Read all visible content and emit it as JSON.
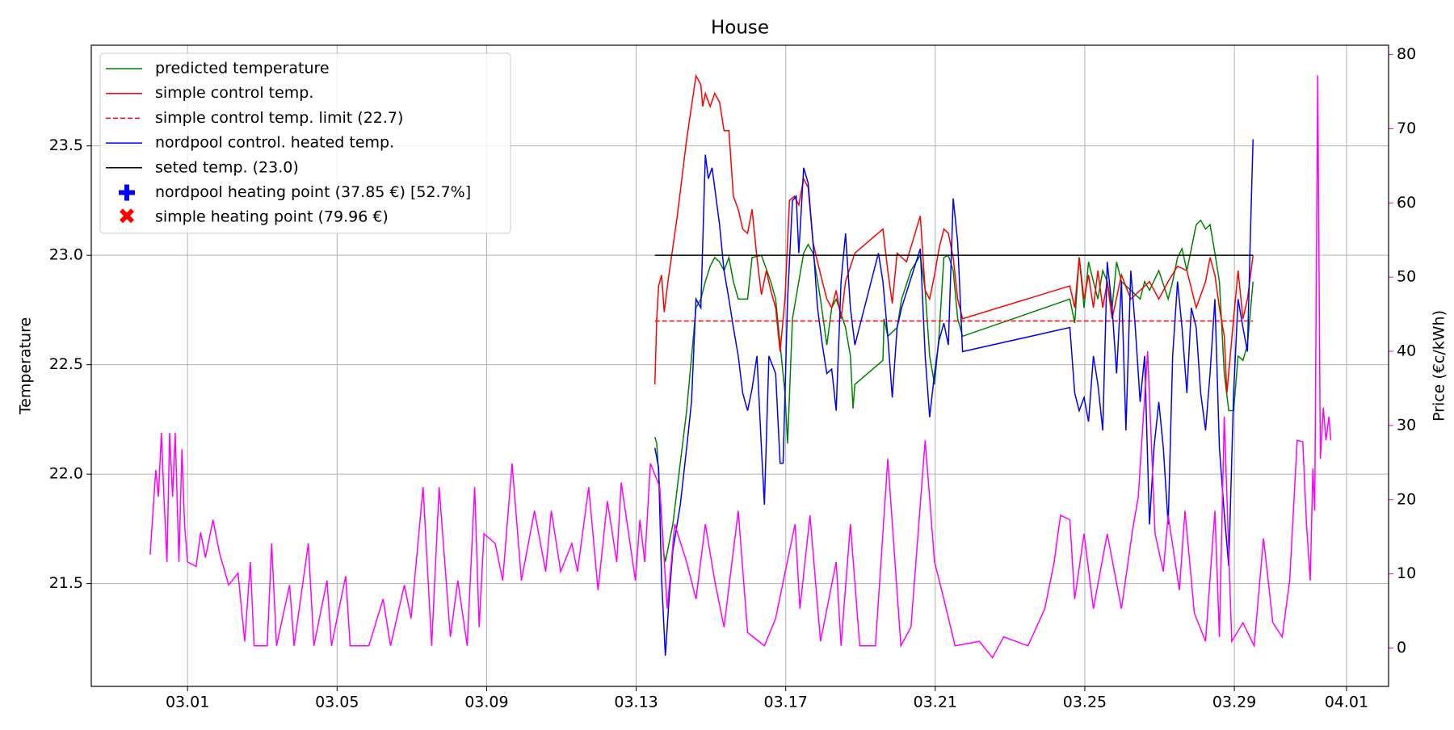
{
  "chart_data": {
    "type": "line",
    "title": "House",
    "ylabel": "Temperature",
    "y2label": "Price (€c/kWh)",
    "y2color": "#ff00ff",
    "grid": true,
    "legend": "upper left",
    "xlim": [
      -2.575,
      32.125
    ],
    "xticks": [
      {
        "value": 0,
        "label": "03.01"
      },
      {
        "value": 4,
        "label": "03.05"
      },
      {
        "value": 8,
        "label": "03.09"
      },
      {
        "value": 12,
        "label": "03.13"
      },
      {
        "value": 16,
        "label": "03.17"
      },
      {
        "value": 20,
        "label": "03.21"
      },
      {
        "value": 24,
        "label": "03.25"
      },
      {
        "value": 28,
        "label": "03.29"
      },
      {
        "value": 31,
        "label": "04.01"
      }
    ],
    "ylim": [
      21.03,
      23.96
    ],
    "yticks": [
      21.5,
      {
        "value": 22,
        "label": "22.0"
      },
      22.5,
      {
        "value": 23,
        "label": "23.0"
      },
      23.5
    ],
    "y2lim": [
      -5.17,
      81.26
    ],
    "y2ticks": [
      0,
      10,
      20,
      30,
      40,
      50,
      60,
      70,
      80
    ],
    "series": [
      {
        "name": "predicted temperature",
        "color": "#008000",
        "style": "solid",
        "x": [
          12.5,
          12.55,
          12.73,
          12.78,
          12.98,
          13.35,
          13.6,
          13.73,
          13.85,
          13.98,
          14.1,
          14.23,
          14.35,
          14.48,
          14.6,
          14.73,
          14.98,
          15.1,
          15.35,
          15.6,
          15.73,
          15.98,
          16.05,
          16.18,
          16.35,
          16.48,
          16.6,
          16.73,
          16.93,
          17.1,
          17.23,
          17.35,
          17.6,
          17.73,
          17.8,
          17.85,
          18.6,
          18.63,
          18.73,
          18.98,
          19.1,
          19.35,
          19.6,
          19.73,
          19.85,
          19.98,
          20.1,
          20.23,
          20.35,
          20.48,
          20.6,
          20.73,
          23.6,
          23.73,
          23.85,
          23.98,
          24.1,
          24.23,
          24.35,
          24.48,
          24.6,
          24.73,
          24.85,
          24.98,
          25.23,
          25.48,
          25.6,
          25.73,
          25.98,
          26.23,
          26.35,
          26.48,
          26.6,
          26.73,
          26.98,
          27.1,
          27.23,
          27.35,
          27.48,
          27.6,
          27.73,
          27.85,
          27.98,
          28.1,
          28.23,
          28.35,
          28.5
        ],
        "values": [
          22.17,
          22.14,
          21.65,
          21.6,
          21.77,
          22.29,
          22.76,
          22.8,
          22.88,
          22.95,
          22.99,
          22.97,
          22.93,
          22.99,
          22.88,
          22.8,
          22.8,
          22.99,
          23.0,
          22.88,
          22.8,
          22.37,
          22.14,
          22.71,
          22.88,
          23.01,
          23.05,
          23.01,
          22.8,
          22.59,
          22.76,
          22.8,
          22.67,
          22.54,
          22.3,
          22.41,
          22.52,
          22.71,
          22.63,
          22.67,
          22.8,
          22.93,
          23.0,
          22.84,
          22.54,
          22.41,
          22.63,
          22.99,
          23.0,
          22.93,
          22.71,
          22.63,
          22.8,
          22.69,
          22.99,
          22.76,
          22.97,
          22.88,
          22.8,
          22.93,
          22.88,
          22.76,
          22.97,
          22.88,
          22.84,
          22.8,
          22.88,
          22.84,
          22.93,
          22.8,
          22.88,
          22.99,
          23.03,
          22.93,
          23.14,
          23.16,
          23.12,
          23.14,
          23.01,
          22.88,
          22.46,
          22.29,
          22.29,
          22.54,
          22.52,
          22.59,
          22.88
        ]
      },
      {
        "name": "simple control temp.",
        "color": "#ff0000",
        "style": "solid",
        "x": [
          12.5,
          12.55,
          12.6,
          12.68,
          12.75,
          12.85,
          13.1,
          13.35,
          13.6,
          13.73,
          13.78,
          13.85,
          13.98,
          14.1,
          14.23,
          14.35,
          14.48,
          14.6,
          14.73,
          14.85,
          14.98,
          15.1,
          15.23,
          15.35,
          15.48,
          15.6,
          15.73,
          15.85,
          15.98,
          16.1,
          16.23,
          16.35,
          16.48,
          16.6,
          16.73,
          16.85,
          16.98,
          17.1,
          17.23,
          17.35,
          17.48,
          17.6,
          17.85,
          18.6,
          18.73,
          18.85,
          18.98,
          19.23,
          19.6,
          19.73,
          19.85,
          19.98,
          20.1,
          20.23,
          20.35,
          20.48,
          20.6,
          20.73,
          23.6,
          23.73,
          23.85,
          23.98,
          24.1,
          24.23,
          24.35,
          24.48,
          24.6,
          24.73,
          24.98,
          25.23,
          25.48,
          25.73,
          25.98,
          26.23,
          26.48,
          26.73,
          26.98,
          27.23,
          27.35,
          27.48,
          27.6,
          27.73,
          27.8,
          27.98,
          28.1,
          28.23,
          28.35,
          28.5
        ],
        "values": [
          22.41,
          22.71,
          22.86,
          22.91,
          22.74,
          22.88,
          23.18,
          23.53,
          23.82,
          23.78,
          23.68,
          23.74,
          23.68,
          23.74,
          23.7,
          23.57,
          23.57,
          23.27,
          23.21,
          23.12,
          23.1,
          23.21,
          22.99,
          22.82,
          22.93,
          22.84,
          22.76,
          22.56,
          22.8,
          23.25,
          23.27,
          23.23,
          23.35,
          23.31,
          23.06,
          22.97,
          22.88,
          22.8,
          22.76,
          22.84,
          22.71,
          22.88,
          23.01,
          23.12,
          22.93,
          22.78,
          23.01,
          22.97,
          23.18,
          22.84,
          22.8,
          22.91,
          23.03,
          23.12,
          23.1,
          22.99,
          22.8,
          22.71,
          22.86,
          22.76,
          22.99,
          22.8,
          22.91,
          22.76,
          22.93,
          22.76,
          22.88,
          22.71,
          22.91,
          22.8,
          22.84,
          22.88,
          22.8,
          22.88,
          22.95,
          22.93,
          22.76,
          22.88,
          22.99,
          22.91,
          22.76,
          22.63,
          22.37,
          22.71,
          22.93,
          22.71,
          22.8,
          23.0
        ]
      },
      {
        "name": "simple control temp. limit (22.7)",
        "color": "#ff0000",
        "style": "dashed",
        "x": [
          12.5,
          28.5
        ],
        "values": [
          22.7,
          22.7
        ]
      },
      {
        "name": "nordpool control. heated temp.",
        "color": "#0000ff",
        "style": "solid",
        "x": [
          12.5,
          12.6,
          12.68,
          12.78,
          12.88,
          12.98,
          13.18,
          13.35,
          13.48,
          13.6,
          13.73,
          13.85,
          13.93,
          14.03,
          14.1,
          14.23,
          14.35,
          14.48,
          14.6,
          14.73,
          14.85,
          14.98,
          15.1,
          15.23,
          15.35,
          15.43,
          15.55,
          15.73,
          15.85,
          15.93,
          16.05,
          16.18,
          16.28,
          16.35,
          16.48,
          16.6,
          16.73,
          16.85,
          16.98,
          17.1,
          17.23,
          17.35,
          17.48,
          17.6,
          17.73,
          17.85,
          18.48,
          18.6,
          18.73,
          18.85,
          18.98,
          19.1,
          19.6,
          19.73,
          19.85,
          19.98,
          20.1,
          20.23,
          20.35,
          20.48,
          20.6,
          20.73,
          23.6,
          23.73,
          23.85,
          23.98,
          24.1,
          24.23,
          24.35,
          24.48,
          24.6,
          24.73,
          24.85,
          24.98,
          25.1,
          25.23,
          25.35,
          25.48,
          25.6,
          25.73,
          25.85,
          25.98,
          26.1,
          26.23,
          26.35,
          26.48,
          26.6,
          26.73,
          26.85,
          26.98,
          27.1,
          27.23,
          27.35,
          27.48,
          27.6,
          27.73,
          27.85,
          27.98,
          28.1,
          28.23,
          28.35,
          28.43,
          28.5
        ],
        "values": [
          22.12,
          22.03,
          21.52,
          21.17,
          21.43,
          21.65,
          21.86,
          22.12,
          22.33,
          22.8,
          22.76,
          23.46,
          23.35,
          23.4,
          23.31,
          23.14,
          22.93,
          22.8,
          22.67,
          22.54,
          22.37,
          22.29,
          22.39,
          22.54,
          22.12,
          21.86,
          22.54,
          22.46,
          22.05,
          22.05,
          22.8,
          23.25,
          23.27,
          23.01,
          23.4,
          23.33,
          23.06,
          22.76,
          22.59,
          22.46,
          22.48,
          22.29,
          22.88,
          23.1,
          22.76,
          22.59,
          23.01,
          22.88,
          22.63,
          22.35,
          22.67,
          22.76,
          23.03,
          22.54,
          22.26,
          22.46,
          22.61,
          22.69,
          22.59,
          23.26,
          23.06,
          22.56,
          22.67,
          22.37,
          22.29,
          22.35,
          22.24,
          22.54,
          22.41,
          22.2,
          22.97,
          22.76,
          22.46,
          22.88,
          22.2,
          22.93,
          22.67,
          22.33,
          22.54,
          21.77,
          22.12,
          22.33,
          22.12,
          21.77,
          22.54,
          22.88,
          22.67,
          22.37,
          22.76,
          22.67,
          22.37,
          22.2,
          22.46,
          22.8,
          22.12,
          21.82,
          21.58,
          22.37,
          22.8,
          22.67,
          22.56,
          23.1,
          23.53
        ]
      },
      {
        "name": "seted temp. (23.0)",
        "color": "#000000",
        "style": "solid",
        "x": [
          12.5,
          28.5
        ],
        "values": [
          23.0,
          23.0
        ]
      },
      {
        "name": "nordpool heating point (37.85 €) [52.7%]",
        "color": "#0000ff",
        "marker": "plus",
        "x": [],
        "values": []
      },
      {
        "name": "simple heating point (79.96 €)",
        "color": "#ff0000",
        "marker": "x",
        "x": [],
        "values": []
      },
      {
        "name": "price",
        "color": "#ff00ff",
        "style": "solid",
        "axis": "y2",
        "x": [
          -1.0,
          -0.85,
          -0.78,
          -0.7,
          -0.63,
          -0.55,
          -0.48,
          -0.4,
          -0.33,
          -0.23,
          -0.15,
          -0.08,
          0,
          0.23,
          0.35,
          0.48,
          0.68,
          0.85,
          1.1,
          1.35,
          1.53,
          1.68,
          1.78,
          2.13,
          2.25,
          2.38,
          2.73,
          2.85,
          3.23,
          3.38,
          3.73,
          3.85,
          4.23,
          4.35,
          4.85,
          5.23,
          5.43,
          5.8,
          5.98,
          6.3,
          6.53,
          6.73,
          7.03,
          7.23,
          7.48,
          7.68,
          7.8,
          7.93,
          8.23,
          8.43,
          8.68,
          8.93,
          9.28,
          9.58,
          9.73,
          9.98,
          10.28,
          10.43,
          10.73,
          10.98,
          11.23,
          11.48,
          11.6,
          11.98,
          12.1,
          12.23,
          12.38,
          12.63,
          12.83,
          13.03,
          13.35,
          13.6,
          13.85,
          14.1,
          14.35,
          14.73,
          14.98,
          15.43,
          15.73,
          16.25,
          16.38,
          16.65,
          16.93,
          17.35,
          17.48,
          17.73,
          17.98,
          18.4,
          18.73,
          19.08,
          19.35,
          19.73,
          19.98,
          20.23,
          20.53,
          21.18,
          21.53,
          21.83,
          22.48,
          22.93,
          23.18,
          23.35,
          23.6,
          23.73,
          23.98,
          24.23,
          24.6,
          24.98,
          25.28,
          25.43,
          25.68,
          25.88,
          26.1,
          26.23,
          26.53,
          26.68,
          26.93,
          27.23,
          27.48,
          27.6,
          27.73,
          27.93,
          28.23,
          28.53,
          28.78,
          29.03,
          29.28,
          29.48,
          29.68,
          29.83,
          29.93,
          30.03,
          30.1,
          30.15,
          30.23,
          30.3,
          30.38,
          30.45,
          30.53,
          30.58
        ],
        "values": [
          12.6,
          24.0,
          20.4,
          29.0,
          20.2,
          11.6,
          29.0,
          20.4,
          29.0,
          11.6,
          26.8,
          16.7,
          11.6,
          11.0,
          15.6,
          12.2,
          17.3,
          12.9,
          8.5,
          10.1,
          0.9,
          11.6,
          0.3,
          0.3,
          14.1,
          0.3,
          8.5,
          0.3,
          14.1,
          0.3,
          9.1,
          0.3,
          9.7,
          0.3,
          0.3,
          6.6,
          0.3,
          8.5,
          4.0,
          21.7,
          0.3,
          21.7,
          1.5,
          9.1,
          0.3,
          21.7,
          2.8,
          15.4,
          14.1,
          9.1,
          24.9,
          9.1,
          18.5,
          10.3,
          18.5,
          10.3,
          14.1,
          10.3,
          21.7,
          7.8,
          19.8,
          11.6,
          22.3,
          9.1,
          17.3,
          11.6,
          24.9,
          21.7,
          5.3,
          16.7,
          11.6,
          6.6,
          16.7,
          9.1,
          2.8,
          18.5,
          2.1,
          0.3,
          4.0,
          16.7,
          5.3,
          17.9,
          0.9,
          11.6,
          0.3,
          16.7,
          0.3,
          0.3,
          25.5,
          0.3,
          2.8,
          28.0,
          11.6,
          6.6,
          0.3,
          0.9,
          -1.3,
          1.5,
          0.3,
          5.3,
          11.6,
          17.9,
          17.3,
          6.6,
          15.4,
          5.3,
          15.4,
          5.3,
          16.0,
          20.4,
          40.0,
          15.4,
          10.3,
          17.9,
          7.8,
          18.5,
          4.7,
          0.9,
          18.5,
          1.5,
          31.2,
          0.9,
          3.4,
          0.3,
          14.8,
          3.4,
          1.5,
          9.1,
          28.0,
          27.8,
          16.7,
          9.1,
          24.2,
          18.5,
          77.2,
          25.5,
          32.4,
          28.0,
          31.2,
          28.0
        ]
      }
    ]
  }
}
